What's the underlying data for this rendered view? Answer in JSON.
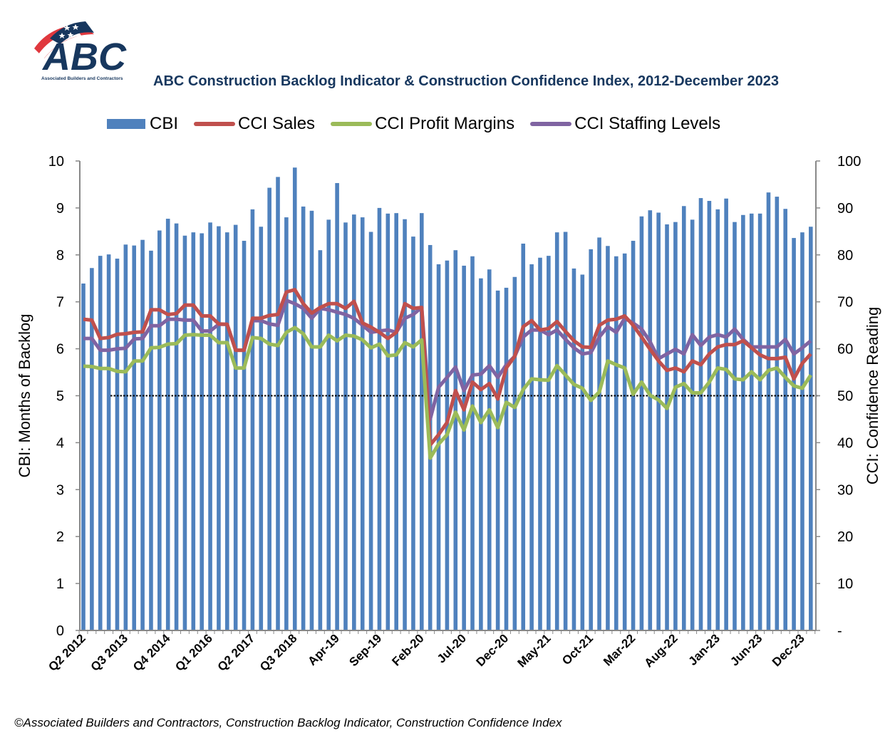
{
  "logo": {
    "text": "ABC",
    "subtitle": "Associated Builders and Contractors",
    "colors": {
      "navy": "#17375E",
      "red": "#E0383E"
    }
  },
  "footer": "©Associated Builders and Contractors, Construction Backlog Indicator, Construction Confidence Index",
  "chart_data": {
    "type": "bar+line",
    "title": "ABC Construction Backlog Indicator & Construction Confidence Index, 2012-December 2023",
    "ylabel_left": "CBI: Months of Backlog",
    "ylabel_right": "CCI: Confidence Reading",
    "ylim_left": [
      0,
      10
    ],
    "ylim_right": [
      0,
      100
    ],
    "yticks_left": [
      "0",
      "1",
      "2",
      "3",
      "4",
      "5",
      "6",
      "7",
      "8",
      "9",
      "10"
    ],
    "yticks_right": [
      "-",
      "10",
      "20",
      "30",
      "40",
      "50",
      "60",
      "70",
      "80",
      "90",
      "100"
    ],
    "grid": false,
    "legend_position": "top",
    "reference_line": {
      "axis": "right",
      "value": 50,
      "style": "dotted"
    },
    "x_tick_labels": [
      {
        "index": 0,
        "label": "Q2 2012"
      },
      {
        "index": 5,
        "label": "Q3 2013"
      },
      {
        "index": 10,
        "label": "Q4 2014"
      },
      {
        "index": 15,
        "label": "Q1 2016"
      },
      {
        "index": 20,
        "label": "Q2 2017"
      },
      {
        "index": 25,
        "label": "Q3 2018"
      },
      {
        "index": 30,
        "label": "Apr-19"
      },
      {
        "index": 35,
        "label": "Sep-19"
      },
      {
        "index": 40,
        "label": "Feb-20"
      },
      {
        "index": 45,
        "label": "Jul-20"
      },
      {
        "index": 50,
        "label": "Dec-20"
      },
      {
        "index": 55,
        "label": "May-21"
      },
      {
        "index": 60,
        "label": "Oct-21"
      },
      {
        "index": 65,
        "label": "Mar-22"
      },
      {
        "index": 70,
        "label": "Aug-22"
      },
      {
        "index": 75,
        "label": "Jan-23"
      },
      {
        "index": 80,
        "label": "Jun-23"
      },
      {
        "index": 85,
        "label": "Dec-23"
      }
    ],
    "series": [
      {
        "name": "CBI",
        "type": "bar",
        "axis": "left",
        "color": "#4F81BD",
        "values": [
          7.39,
          7.72,
          7.98,
          8.01,
          7.92,
          8.22,
          8.2,
          8.32,
          8.09,
          8.52,
          8.77,
          8.67,
          8.41,
          8.48,
          8.46,
          8.69,
          8.61,
          8.48,
          8.64,
          8.3,
          8.97,
          8.6,
          9.43,
          9.66,
          8.8,
          9.86,
          9.03,
          8.94,
          8.1,
          8.75,
          9.53,
          8.69,
          8.86,
          8.8,
          8.49,
          9.0,
          8.88,
          8.89,
          8.76,
          8.39,
          8.89,
          8.21,
          7.8,
          7.88,
          8.1,
          7.77,
          7.97,
          7.5,
          7.69,
          7.24,
          7.3,
          7.53,
          8.24,
          7.8,
          7.94,
          7.98,
          8.48,
          8.49,
          7.71,
          7.58,
          8.12,
          8.37,
          8.19,
          7.97,
          8.03,
          8.3,
          8.82,
          8.95,
          8.9,
          8.65,
          8.7,
          9.04,
          8.75,
          9.21,
          9.15,
          8.97,
          9.2,
          8.7,
          8.85,
          8.88,
          8.88,
          9.33,
          9.24,
          8.98,
          8.36,
          8.48,
          8.6
        ]
      },
      {
        "name": "CCI Sales",
        "type": "line",
        "axis": "right",
        "color": "#C0504D",
        "values": [
          66.3,
          66.1,
          62.2,
          62.4,
          63.1,
          63.2,
          63.5,
          63.6,
          68.3,
          68.3,
          67.3,
          67.5,
          69.3,
          69.3,
          67.0,
          67.0,
          65.3,
          65.2,
          59.7,
          59.7,
          66.5,
          66.5,
          67.1,
          67.3,
          72.1,
          72.6,
          69.6,
          67.6,
          68.8,
          69.6,
          69.6,
          68.6,
          70.1,
          65.5,
          64.6,
          63.5,
          62.2,
          63.5,
          69.6,
          68.6,
          68.8,
          39.5,
          41.7,
          44.3,
          51.1,
          47.0,
          52.9,
          51.3,
          52.6,
          49.3,
          55.9,
          58.4,
          64.7,
          66.0,
          64.0,
          64.3,
          65.8,
          63.7,
          61.7,
          60.4,
          60.3,
          65.0,
          66.1,
          66.3,
          67.0,
          65.0,
          62.5,
          59.9,
          57.4,
          55.4,
          55.9,
          55.1,
          57.4,
          56.6,
          58.9,
          60.4,
          60.9,
          60.9,
          61.7,
          60.2,
          58.7,
          57.9,
          57.9,
          58.2,
          53.6,
          56.9,
          58.9
        ]
      },
      {
        "name": "CCI Profit Margins",
        "type": "line",
        "axis": "right",
        "color": "#9BBB59",
        "values": [
          56.3,
          56.2,
          55.8,
          55.8,
          55.2,
          55.1,
          57.4,
          57.4,
          60.2,
          60.3,
          61.0,
          61.1,
          62.9,
          63.0,
          62.9,
          62.9,
          61.3,
          61.3,
          55.9,
          55.9,
          62.4,
          62.2,
          61.0,
          60.7,
          63.5,
          64.5,
          63.2,
          60.4,
          60.4,
          62.9,
          61.7,
          62.9,
          62.7,
          61.9,
          60.2,
          61.0,
          58.5,
          58.7,
          61.3,
          60.4,
          61.9,
          36.7,
          39.7,
          41.7,
          46.5,
          42.7,
          47.8,
          44.3,
          47.0,
          43.2,
          48.6,
          47.5,
          51.3,
          53.6,
          53.4,
          53.3,
          56.4,
          54.4,
          52.4,
          51.6,
          49.0,
          50.8,
          57.4,
          56.6,
          55.9,
          50.3,
          52.9,
          50.1,
          49.1,
          47.3,
          51.8,
          52.6,
          50.6,
          50.6,
          52.9,
          55.9,
          55.6,
          53.6,
          53.4,
          55.1,
          53.4,
          55.4,
          55.9,
          53.9,
          52.1,
          51.6,
          54.4
        ]
      },
      {
        "name": "CCI Staffing Levels",
        "type": "line",
        "axis": "right",
        "color": "#8064A2",
        "values": [
          62.2,
          62.2,
          59.7,
          59.7,
          60.0,
          60.1,
          62.1,
          62.2,
          64.9,
          64.9,
          66.3,
          66.3,
          66.1,
          66.1,
          63.8,
          63.8,
          65.2,
          65.2,
          59.7,
          59.7,
          66.0,
          66.0,
          65.3,
          65.0,
          70.3,
          69.6,
          68.6,
          66.5,
          68.6,
          68.3,
          67.8,
          67.3,
          66.5,
          65.0,
          63.5,
          63.8,
          64.0,
          63.5,
          66.5,
          67.3,
          68.8,
          45.0,
          51.8,
          53.9,
          56.1,
          51.1,
          54.4,
          54.6,
          56.4,
          53.9,
          56.6,
          58.4,
          62.5,
          64.0,
          64.0,
          63.0,
          64.0,
          62.0,
          60.2,
          58.9,
          59.2,
          62.5,
          64.7,
          63.5,
          66.5,
          65.5,
          64.2,
          61.5,
          57.9,
          58.9,
          59.9,
          58.9,
          63.0,
          60.7,
          62.5,
          63.0,
          62.5,
          64.2,
          62.0,
          60.4,
          60.4,
          60.4,
          60.4,
          62.0,
          58.9,
          60.2,
          61.7
        ]
      }
    ]
  }
}
